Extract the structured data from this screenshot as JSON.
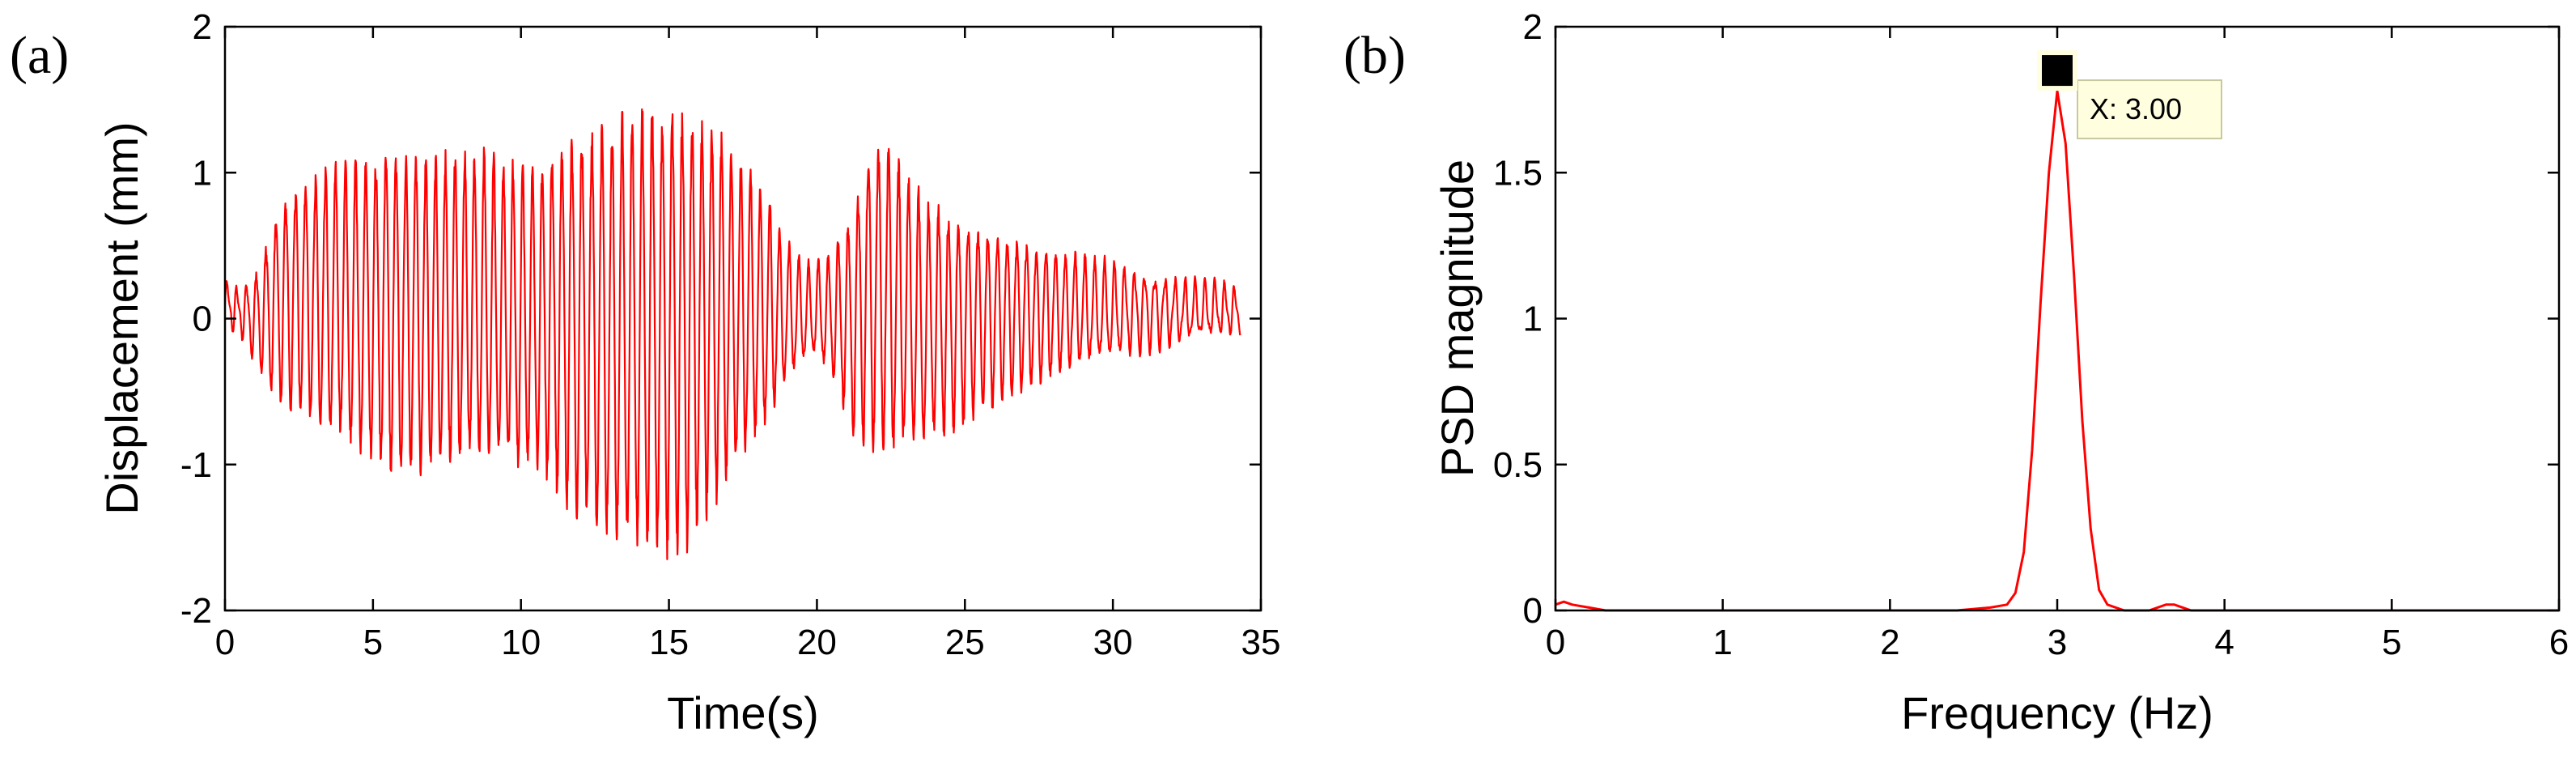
{
  "chart_data": [
    {
      "panel_label": "(a)",
      "type": "line",
      "title": "",
      "xlabel": "Time(s)",
      "ylabel": "Displacement (mm)",
      "xlim": [
        0,
        35
      ],
      "ylim": [
        -2,
        2
      ],
      "xticks": [
        "0",
        "5",
        "10",
        "15",
        "20",
        "25",
        "30",
        "35"
      ],
      "yticks": [
        "-2",
        "-1",
        "0",
        "1",
        "2"
      ],
      "grid": false,
      "line_color": "#ff0000",
      "series": [
        {
          "description_note": "",
          "freq_hz": 3.0,
          "x_end": 34.3,
          "offset": 0.1,
          "envelope": {
            "t": [
              0,
              0.5,
              1.0,
              1.5,
              2.0,
              2.5,
              3.5,
              4.5,
              5.5,
              6.5,
              7.5,
              8.5,
              9.5,
              10.5,
              11.5,
              12.5,
              13.5,
              14.5,
              15.5,
              16.5,
              17.5,
              18.2,
              19.0,
              19.8,
              20.5,
              21.2,
              21.8,
              22.5,
              23.5,
              24.5,
              25.5,
              26.5,
              27.5,
              28.5,
              29.5,
              30.5,
              31.5,
              32.5,
              33.5,
              34.3
            ],
            "upper": [
              0.25,
              0.2,
              0.3,
              0.6,
              0.85,
              0.95,
              1.05,
              1.1,
              1.2,
              1.15,
              1.15,
              1.15,
              1.1,
              1.05,
              1.3,
              1.35,
              1.45,
              1.5,
              1.5,
              1.35,
              1.1,
              0.9,
              0.5,
              0.35,
              0.45,
              0.75,
              1.25,
              1.2,
              0.85,
              0.75,
              0.65,
              0.6,
              0.5,
              0.45,
              0.4,
              0.35,
              0.3,
              0.25,
              0.25,
              0.2
            ],
            "lower": [
              -0.05,
              -0.1,
              -0.3,
              -0.5,
              -0.6,
              -0.7,
              -0.8,
              -0.95,
              -1.05,
              -1.1,
              -1.05,
              -1.0,
              -1.05,
              -1.1,
              -1.3,
              -1.45,
              -1.6,
              -1.65,
              -1.6,
              -1.3,
              -1.0,
              -0.8,
              -0.45,
              -0.25,
              -0.4,
              -0.8,
              -0.9,
              -0.95,
              -0.9,
              -0.8,
              -0.65,
              -0.55,
              -0.45,
              -0.35,
              -0.3,
              -0.25,
              -0.2,
              -0.15,
              -0.12,
              -0.1
            ]
          }
        }
      ]
    },
    {
      "panel_label": "(b)",
      "type": "line",
      "title": "",
      "xlabel": "Frequency (Hz)",
      "ylabel": "PSD magnitude",
      "xlim": [
        0,
        6
      ],
      "ylim": [
        0,
        2
      ],
      "xticks": [
        "0",
        "1",
        "2",
        "3",
        "4",
        "5",
        "6"
      ],
      "yticks": [
        "0",
        "0.5",
        "1",
        "1.5",
        "2"
      ],
      "grid": false,
      "line_color": "#ff0000",
      "series": [
        {
          "x": [
            0,
            0.05,
            0.1,
            0.2,
            0.3,
            0.4,
            1.0,
            2.0,
            2.4,
            2.6,
            2.7,
            2.75,
            2.8,
            2.85,
            2.9,
            2.95,
            3.0,
            3.05,
            3.1,
            3.15,
            3.2,
            3.25,
            3.3,
            3.4,
            3.55,
            3.6,
            3.65,
            3.7,
            3.75,
            3.8,
            4.0,
            5.0,
            6.0
          ],
          "y": [
            0.02,
            0.03,
            0.02,
            0.01,
            0.0,
            0.0,
            0.0,
            0.0,
            0.0,
            0.01,
            0.02,
            0.06,
            0.2,
            0.55,
            1.05,
            1.5,
            1.78,
            1.6,
            1.15,
            0.65,
            0.28,
            0.07,
            0.02,
            0.0,
            0.0,
            0.01,
            0.02,
            0.02,
            0.01,
            0.0,
            0.0,
            0.0,
            0.0
          ]
        }
      ],
      "datatip": {
        "x": 3.0,
        "y": 1.85,
        "label": "X: 3.00",
        "background": "#ffffe0",
        "border": "#c8c8a0"
      }
    }
  ]
}
